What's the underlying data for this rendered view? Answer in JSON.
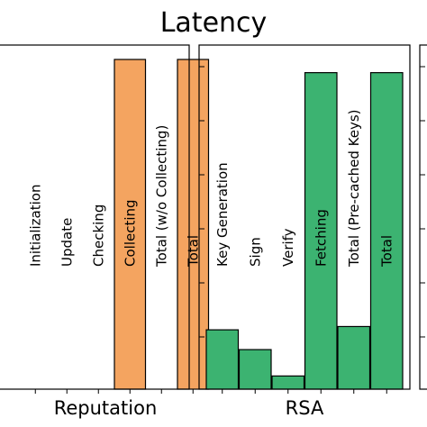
{
  "chart_data": {
    "title": "Latency",
    "colors": {
      "orange": "#f4a460",
      "green": "#3cb371",
      "stroke": "#000000"
    },
    "panels": [
      {
        "type": "bar",
        "xlabel": "Reputation",
        "ylim": [
          0,
          100
        ],
        "categories": [
          "Initialization",
          "Update",
          "Checking",
          "Collecting",
          "Total (w/o Collecting)",
          "Total"
        ],
        "values": [
          0,
          0,
          0,
          100,
          0,
          100
        ],
        "color": "#f4a460"
      },
      {
        "type": "bar",
        "xlabel": "RSA",
        "ylim": [
          0,
          100
        ],
        "categories": [
          "Key Generation",
          "Sign",
          "Verify",
          "Fetching",
          "Total (Pre-cached Keys)",
          "Total"
        ],
        "values": [
          18,
          12,
          4,
          96,
          19,
          96
        ],
        "color": "#3cb371"
      },
      {
        "type": "bar",
        "xlabel": "",
        "ylim": [
          0,
          100
        ],
        "categories": [],
        "values": [],
        "color": "#3cb371"
      }
    ]
  }
}
